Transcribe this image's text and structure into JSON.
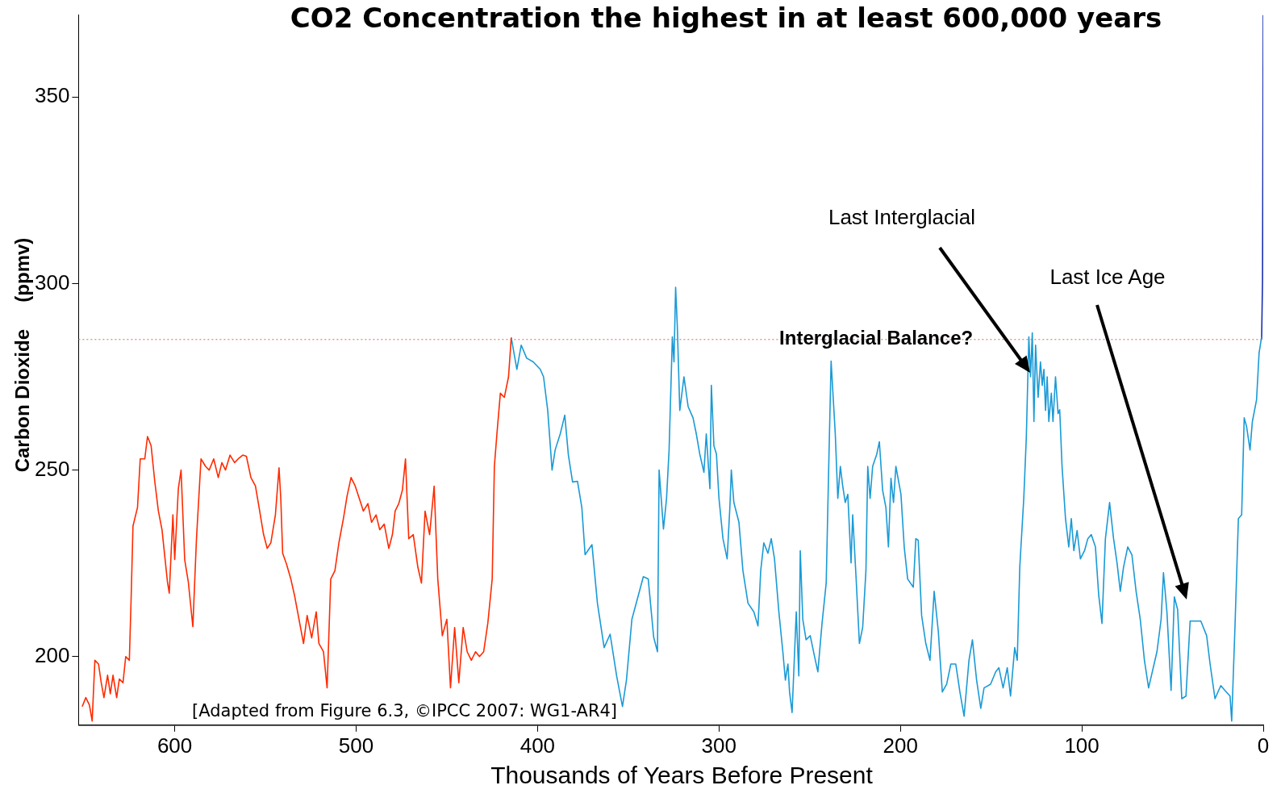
{
  "chart_data": {
    "type": "line",
    "title": "CO2 Concentration the highest in at least 600,000 years",
    "xlabel": "Thousands of Years Before Present",
    "ylabel": "Carbon Dioxide     (ppmv)",
    "xlim": [
      653,
      0
    ],
    "xticks": [
      600,
      500,
      400,
      300,
      200,
      100,
      0
    ],
    "ylim": [
      181.6,
      372
    ],
    "yticks": [
      200,
      250,
      300,
      350
    ],
    "grid": false,
    "legend": false,
    "marker": "none",
    "line_style": "solid",
    "ref_lines": [
      {
        "axis": "y",
        "value": 285,
        "label": "Interglacial Balance?",
        "color": "#e06060",
        "line_style": "dotted"
      }
    ],
    "annotations": [
      "Last Interglacial",
      "Last Ice Age",
      "[Adapted from Figure 6.3, ©IPCC 2007: WG1-AR4]"
    ],
    "series": [
      {
        "color": "#ff2a00",
        "x": [
          651,
          649,
          647,
          645.5,
          644,
          642,
          640.5,
          639,
          637,
          635.5,
          634,
          632,
          630.5,
          628.5,
          627,
          625,
          624,
          623,
          620.5,
          619,
          616.5,
          615,
          613,
          611,
          609,
          607,
          605.5,
          604,
          603,
          601,
          600,
          598,
          596.5,
          594.5,
          592.5,
          590,
          588,
          585.5,
          583,
          581,
          578.5,
          576,
          574,
          572,
          569.5,
          567,
          565,
          562.5,
          560.5,
          558,
          555.5,
          553.5,
          551,
          549,
          547,
          544.5,
          542.5,
          541.5,
          540.5,
          538.5,
          536,
          534,
          531.5,
          529,
          527,
          524.5,
          522,
          520.5,
          518,
          516,
          514,
          511.7,
          509.5,
          507,
          505,
          502.8,
          500.5,
          498,
          496,
          493.5,
          491.5,
          489,
          487,
          484.5,
          482,
          480,
          478.5,
          476.5,
          474.5,
          472.8,
          471,
          468.5,
          466,
          464,
          462,
          459.5,
          457,
          455,
          452.5,
          450,
          448,
          445.7,
          443.4,
          441,
          438.8,
          436.5,
          434.2,
          432,
          429.7,
          427.4,
          425,
          423.8,
          422.4,
          420.5,
          418.3,
          416,
          414.5
        ],
        "values": [
          186.6,
          189,
          187,
          182.7,
          199,
          198,
          193,
          189,
          195,
          190,
          195,
          189,
          194,
          193,
          200,
          199,
          216,
          235,
          240,
          253,
          253,
          259,
          256.5,
          247,
          239,
          234,
          227,
          220,
          217,
          238,
          226,
          245,
          250,
          226,
          220,
          208,
          231.6,
          253,
          251,
          250,
          253,
          248,
          252,
          250,
          254,
          252,
          253,
          254,
          253.7,
          248,
          245.7,
          240,
          232.7,
          229,
          230.5,
          238,
          250.6,
          242,
          227.7,
          225,
          220.8,
          216.5,
          210,
          203.5,
          211,
          205,
          212,
          203.5,
          201.3,
          191.6,
          220.8,
          223,
          230.5,
          237,
          243,
          248,
          245.7,
          242,
          239,
          241,
          236,
          238,
          234,
          235.5,
          229,
          232.7,
          239,
          241,
          244.6,
          253,
          231.6,
          232.7,
          224,
          219.7,
          239,
          232.7,
          245.7,
          220.8,
          205.6,
          210,
          191.6,
          207.8,
          193,
          207.8,
          201.3,
          199,
          201.3,
          200,
          201.3,
          209,
          220.8,
          251,
          259.7,
          270.6,
          269.5,
          275,
          285.5
        ]
      },
      {
        "color": "#1a9ad6",
        "x": [
          414.5,
          411.4,
          409,
          406,
          402.4,
          398.5,
          396.7,
          394.4,
          392,
          390.3,
          387.5,
          385,
          383,
          380.7,
          378,
          375.6,
          373.8,
          370,
          367,
          363.3,
          360,
          356.4,
          353.2,
          351,
          348,
          345,
          341.7,
          339,
          336,
          333.9,
          333,
          330.6,
          328.9,
          327.5,
          325.7,
          324.8,
          323.9,
          323,
          321.6,
          319.3,
          317,
          314.3,
          312.5,
          310.6,
          308.3,
          307,
          305,
          304.2,
          302.8,
          301.4,
          300,
          297.8,
          295.5,
          294,
          293.2,
          291.8,
          289,
          286.8,
          284,
          280.8,
          278.5,
          277,
          275.3,
          273,
          271.2,
          269.4,
          267,
          264.8,
          263.4,
          262,
          261.1,
          259.7,
          257.4,
          256,
          255.2,
          253.8,
          252,
          249.7,
          247.4,
          245.5,
          243.2,
          240.9,
          239.6,
          238.2,
          235.9,
          234.5,
          233.1,
          231.8,
          230.4,
          229,
          227.2,
          226.3,
          224.4,
          222.6,
          220.8,
          219,
          218,
          216.7,
          215.3,
          213,
          211.6,
          209.8,
          208,
          206.6,
          205.2,
          203.8,
          202.5,
          199.7,
          197.9,
          196,
          192.9,
          191.5,
          190.2,
          188.3,
          186,
          183.7,
          181.4,
          179.1,
          176.9,
          174.5,
          172.2,
          169.5,
          167.2,
          164.9,
          162.2,
          160.3,
          158,
          155.7,
          153.9,
          150.3,
          147.5,
          145.7,
          143.4,
          141.1,
          139.3,
          137,
          135.6,
          134.2,
          132,
          130.6,
          129.2,
          128.3,
          127.3,
          126.4,
          125.5,
          124.1,
          122.8,
          121.8,
          120.9,
          120,
          119.1,
          118.2,
          116.8,
          115.9,
          114.5,
          113.1,
          112.2,
          110.9,
          109,
          107.2,
          105.8,
          104.4,
          102.6,
          100.8,
          98.5,
          96.7,
          94.8,
          92.5,
          90.7,
          88.9,
          87,
          84.7,
          82.5,
          80.6,
          78.8,
          77,
          74.7,
          72.4,
          70.1,
          67.8,
          65.5,
          63.2,
          58.6,
          56.3,
          55,
          53.1,
          50.8,
          49,
          47.2,
          44.9,
          42.6,
          40.3,
          36.6,
          34.4,
          31.2,
          29.3,
          26.6,
          23.4,
          21.1,
          18.3,
          17.4,
          15.6,
          13.7,
          11.9,
          10.5,
          9.2,
          7.3,
          6,
          3.7,
          2.3,
          0.9
        ],
        "values": [
          285.5,
          277,
          283.5,
          280,
          279,
          277,
          275,
          266,
          250,
          255.4,
          259.7,
          264.7,
          254,
          246.8,
          247,
          240,
          227.3,
          230,
          214.3,
          202.4,
          206,
          194.8,
          186.6,
          193.7,
          210,
          215.4,
          221.4,
          220.8,
          205.2,
          201.3,
          250,
          234.2,
          242.4,
          255.4,
          285.7,
          279,
          299,
          289,
          266,
          275,
          267,
          264,
          259.7,
          254.3,
          249.4,
          259.7,
          245,
          272.7,
          256.5,
          254.3,
          242.4,
          231.6,
          226.2,
          240,
          250,
          241.3,
          236,
          223,
          214.3,
          212,
          208.2,
          223,
          230.5,
          227.7,
          231.6,
          226.2,
          212,
          201.3,
          193.7,
          198,
          190.5,
          185,
          212,
          194.8,
          228.4,
          210,
          204.5,
          205.6,
          200.2,
          195.9,
          208.9,
          219.7,
          249,
          279.2,
          259.7,
          242.4,
          251,
          245.7,
          241.3,
          243.5,
          225.1,
          238,
          220.8,
          203.5,
          207.8,
          223,
          251,
          242.4,
          251,
          254.3,
          257.6,
          244.6,
          240,
          229.4,
          247.8,
          241.3,
          251,
          243.5,
          229.4,
          220.8,
          218.6,
          231.6,
          231.2,
          211,
          203.5,
          199,
          217.5,
          206.7,
          190.5,
          192.6,
          198,
          198,
          190.5,
          184,
          199,
          204.5,
          193.7,
          186.1,
          191.6,
          192.6,
          195.9,
          197,
          191.6,
          197,
          189.4,
          202.4,
          199,
          224,
          242.4,
          258.7,
          285.7,
          275,
          286.8,
          263,
          283.5,
          269.5,
          279,
          272.7,
          277,
          266,
          275,
          263,
          270.6,
          263,
          275,
          265.1,
          266.2,
          251,
          237,
          229.4,
          237,
          228.4,
          233.8,
          226.2,
          228.4,
          231.6,
          232.7,
          229.4,
          216.5,
          208.9,
          231.6,
          241.3,
          231.6,
          225.1,
          217.5,
          224,
          229.4,
          227.3,
          217.5,
          210,
          199,
          191.6,
          201.3,
          210,
          222.5,
          212,
          190.9,
          216,
          212.6,
          188.7,
          189.4,
          209.5,
          209.5,
          209.5,
          205.6,
          198,
          188.7,
          192.2,
          190.9,
          189.4,
          182.7,
          207.8,
          237,
          238,
          264,
          261.7,
          255.4,
          263,
          268.8,
          281.4,
          285.7
        ]
      },
      {
        "color": "#1a2fb0",
        "x": [
          0.9,
          0.4,
          0
        ],
        "values": [
          285,
          301,
          372
        ]
      }
    ]
  }
}
